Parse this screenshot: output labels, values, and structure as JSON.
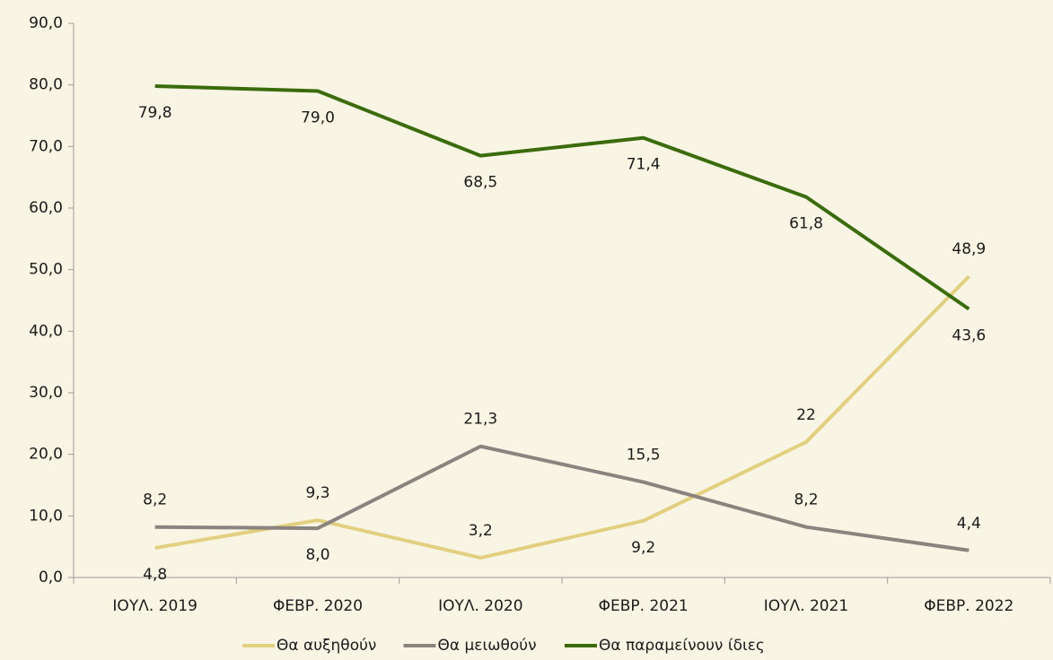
{
  "chart_data": {
    "type": "line",
    "categories": [
      "ΙΟΥΛ. 2019",
      "ΦΕΒΡ. 2020",
      "ΙΟΥΛ. 2020",
      "ΦΕΒΡ. 2021",
      "ΙΟΥΛ. 2021",
      "ΦΕΒΡ. 2022"
    ],
    "series": [
      {
        "name": "Θα αυξηθούν",
        "color": "#e2cf7f",
        "values": [
          4.8,
          9.3,
          3.2,
          9.2,
          22,
          48.9
        ],
        "value_labels": [
          "4,8",
          "9,3",
          "3,2",
          "9,2",
          "22",
          "48,9"
        ]
      },
      {
        "name": "Θα μειωθούν",
        "color": "#8a8380",
        "values": [
          8.2,
          8.0,
          21.3,
          15.5,
          8.2,
          4.4
        ],
        "value_labels": [
          "8,2",
          "8,0",
          "21,3",
          "15,5",
          "8,2",
          "4,4"
        ]
      },
      {
        "name": "Θα παραμείνουν ίδιες",
        "color": "#3b6c0c",
        "values": [
          79.8,
          79.0,
          68.5,
          71.4,
          61.8,
          43.6
        ],
        "value_labels": [
          "79,8",
          "79,0",
          "68,5",
          "71,4",
          "61,8",
          "43,6"
        ]
      }
    ],
    "ylim": [
      0,
      90
    ],
    "yticks": [
      {
        "value": 0,
        "label": "0,0"
      },
      {
        "value": 10,
        "label": "10,0"
      },
      {
        "value": 20,
        "label": "20,0"
      },
      {
        "value": 30,
        "label": "30,0"
      },
      {
        "value": 40,
        "label": "40,0"
      },
      {
        "value": 50,
        "label": "50,0"
      },
      {
        "value": 60,
        "label": "60,0"
      },
      {
        "value": 70,
        "label": "70,0"
      },
      {
        "value": 80,
        "label": "80,0"
      },
      {
        "value": 90,
        "label": "90,0"
      }
    ],
    "legend": "bottom"
  }
}
